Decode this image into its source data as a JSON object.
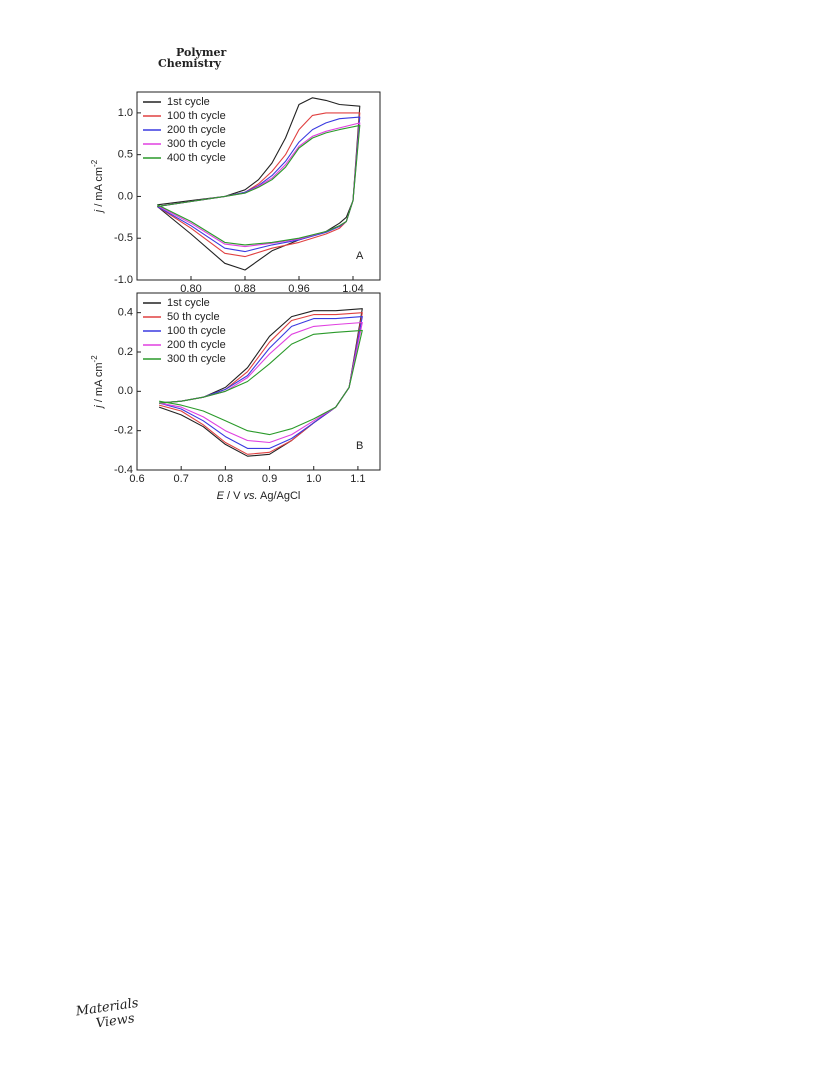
{
  "header": {
    "line1": "Polymer",
    "line2": "Chemistry"
  },
  "footer": {
    "logo_line1": "Materials",
    "logo_line2": "Views"
  },
  "chart_data": [
    {
      "type": "line",
      "annotation": "A",
      "y_label": [
        "j",
        " / mA cm",
        "-2"
      ],
      "x": [
        0.75,
        0.8,
        0.85,
        0.88,
        0.9,
        0.92,
        0.94,
        0.96,
        0.98,
        1.0,
        1.02,
        1.05,
        1.04,
        1.03,
        1.02,
        1.0,
        0.96,
        0.92,
        0.88,
        0.85,
        0.8,
        0.75
      ],
      "xlim": [
        0.72,
        1.08
      ],
      "xticks": [
        {
          "value": 0.8,
          "label": "0.80"
        },
        0.88,
        0.96,
        1.04
      ],
      "ylim": [
        -1.0,
        1.25
      ],
      "yticks": [
        {
          "value": -1,
          "label": "-1.0"
        },
        -0.5,
        {
          "value": 0,
          "label": "0.0"
        },
        0.5,
        {
          "value": 1,
          "label": "1.0"
        }
      ],
      "legend": "top-left",
      "series": [
        {
          "name": "1st cycle",
          "color": "#222222",
          "values": [
            -0.1,
            -0.05,
            0.0,
            0.08,
            0.2,
            0.4,
            0.7,
            1.1,
            1.18,
            1.15,
            1.1,
            1.08,
            -0.05,
            -0.25,
            -0.32,
            -0.42,
            -0.52,
            -0.65,
            -0.88,
            -0.8,
            -0.45,
            -0.12
          ]
        },
        {
          "name": "100 th cycle",
          "color": "#e04040",
          "values": [
            -0.12,
            -0.06,
            0.0,
            0.05,
            0.15,
            0.3,
            0.5,
            0.8,
            0.97,
            1.0,
            1.0,
            1.0,
            -0.05,
            -0.3,
            -0.38,
            -0.45,
            -0.55,
            -0.62,
            -0.72,
            -0.68,
            -0.38,
            -0.12
          ]
        },
        {
          "name": "200 th cycle",
          "color": "#3a3ae0",
          "values": [
            -0.12,
            -0.06,
            0.0,
            0.05,
            0.13,
            0.25,
            0.42,
            0.65,
            0.8,
            0.88,
            0.93,
            0.95,
            -0.05,
            -0.3,
            -0.36,
            -0.43,
            -0.52,
            -0.58,
            -0.66,
            -0.62,
            -0.35,
            -0.12
          ]
        },
        {
          "name": "300 th cycle",
          "color": "#e040e0",
          "values": [
            -0.12,
            -0.06,
            0.0,
            0.04,
            0.12,
            0.22,
            0.38,
            0.6,
            0.72,
            0.78,
            0.82,
            0.88,
            -0.05,
            -0.3,
            -0.35,
            -0.42,
            -0.51,
            -0.56,
            -0.6,
            -0.57,
            -0.32,
            -0.11
          ]
        },
        {
          "name": "400 th cycle",
          "color": "#2a9a2a",
          "values": [
            -0.12,
            -0.06,
            0.0,
            0.04,
            0.11,
            0.2,
            0.35,
            0.58,
            0.7,
            0.76,
            0.8,
            0.85,
            -0.05,
            -0.3,
            -0.35,
            -0.42,
            -0.5,
            -0.55,
            -0.58,
            -0.55,
            -0.3,
            -0.1
          ]
        }
      ]
    },
    {
      "type": "line",
      "annotation": "B",
      "y_label": [
        "j",
        " / mA cm",
        "-2"
      ],
      "x_label": [
        "E",
        " / V ",
        "vs.",
        " Ag/AgCl"
      ],
      "x": [
        0.65,
        0.7,
        0.75,
        0.8,
        0.85,
        0.9,
        0.95,
        1.0,
        1.05,
        1.11,
        1.08,
        1.05,
        1.0,
        0.95,
        0.9,
        0.85,
        0.8,
        0.75,
        0.7,
        0.65
      ],
      "xlim": [
        0.6,
        1.15
      ],
      "xticks": [
        0.6,
        0.7,
        0.8,
        0.9,
        {
          "value": 1,
          "label": "1.0"
        },
        1.1
      ],
      "ylim": [
        -0.4,
        0.5
      ],
      "yticks": [
        -0.4,
        -0.2,
        {
          "value": 0,
          "label": "0.0"
        },
        0.2,
        0.4
      ],
      "legend": "top-left",
      "series": [
        {
          "name": "1st cycle",
          "color": "#222222",
          "values": [
            -0.06,
            -0.05,
            -0.03,
            0.02,
            0.12,
            0.28,
            0.38,
            0.41,
            0.41,
            0.42,
            0.02,
            -0.08,
            -0.16,
            -0.25,
            -0.32,
            -0.33,
            -0.27,
            -0.18,
            -0.12,
            -0.08
          ]
        },
        {
          "name": "50 th cycle",
          "color": "#e04040",
          "values": [
            -0.06,
            -0.05,
            -0.03,
            0.01,
            0.1,
            0.25,
            0.36,
            0.39,
            0.39,
            0.4,
            0.02,
            -0.08,
            -0.16,
            -0.25,
            -0.31,
            -0.32,
            -0.26,
            -0.17,
            -0.1,
            -0.07
          ]
        },
        {
          "name": "100 th cycle",
          "color": "#3a3ae0",
          "values": [
            -0.06,
            -0.05,
            -0.03,
            0.01,
            0.08,
            0.22,
            0.33,
            0.37,
            0.37,
            0.38,
            0.02,
            -0.08,
            -0.16,
            -0.24,
            -0.29,
            -0.29,
            -0.23,
            -0.15,
            -0.09,
            -0.06
          ]
        },
        {
          "name": "200 th cycle",
          "color": "#e040e0",
          "values": [
            -0.06,
            -0.05,
            -0.03,
            0.0,
            0.07,
            0.19,
            0.29,
            0.33,
            0.34,
            0.35,
            0.02,
            -0.08,
            -0.15,
            -0.22,
            -0.26,
            -0.25,
            -0.2,
            -0.13,
            -0.08,
            -0.06
          ]
        },
        {
          "name": "300 th cycle",
          "color": "#2a9a2a",
          "values": [
            -0.06,
            -0.05,
            -0.03,
            0.0,
            0.05,
            0.14,
            0.24,
            0.29,
            0.3,
            0.31,
            0.02,
            -0.08,
            -0.14,
            -0.19,
            -0.22,
            -0.2,
            -0.15,
            -0.1,
            -0.07,
            -0.05
          ]
        }
      ]
    }
  ]
}
